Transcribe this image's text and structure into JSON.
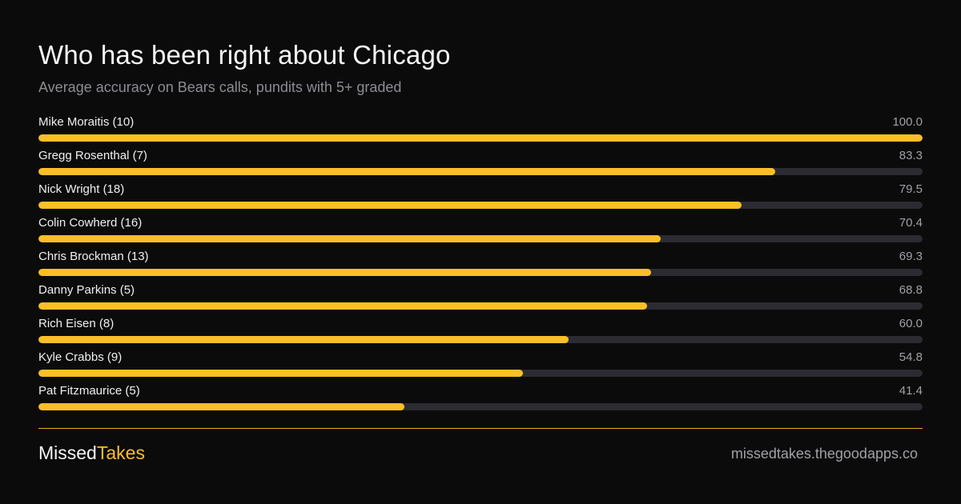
{
  "header": {
    "title": "Who has been right about Chicago",
    "subtitle": "Average accuracy on Bears calls, pundits with 5+ graded"
  },
  "colors": {
    "background": "#0b0b0b",
    "bar_fill": "#fcbf26",
    "bar_track": "#2c2b32",
    "accent": "#fcbf26"
  },
  "chart_data": {
    "type": "bar",
    "orientation": "horizontal",
    "title": "Who has been right about Chicago",
    "subtitle": "Average accuracy on Bears calls, pundits with 5+ graded",
    "xlim": [
      0,
      100
    ],
    "grid": false,
    "categories": [
      "Mike Moraitis (10)",
      "Gregg Rosenthal (7)",
      "Nick Wright (18)",
      "Colin Cowherd (16)",
      "Chris Brockman (13)",
      "Danny Parkins (5)",
      "Rich Eisen (8)",
      "Kyle Crabbs (9)",
      "Pat Fitzmaurice (5)"
    ],
    "values": [
      100.0,
      83.3,
      79.5,
      70.4,
      69.3,
      68.8,
      60.0,
      54.8,
      41.4
    ],
    "value_labels": [
      "100.0",
      "83.3",
      "79.5",
      "70.4",
      "69.3",
      "68.8",
      "60.0",
      "54.8",
      "41.4"
    ]
  },
  "footer": {
    "brand_part1": "Missed",
    "brand_part2": "Takes",
    "site": "missedtakes.thegoodapps.co"
  }
}
